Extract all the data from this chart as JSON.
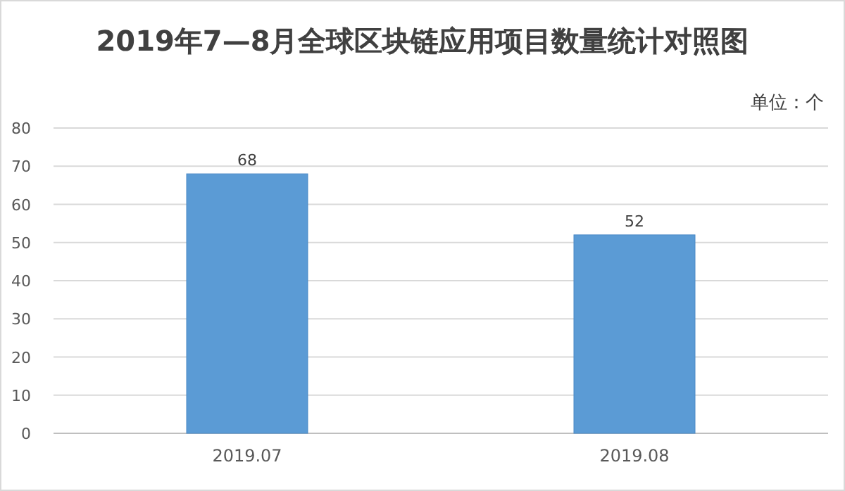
{
  "chart_data": {
    "type": "bar",
    "title": "2019年7—8月全球区块链应用项目数量统计对照图",
    "annotations": [
      "单位：个"
    ],
    "categories": [
      "2019.07",
      "2019.08"
    ],
    "values": [
      68,
      52
    ],
    "color": "#5b9bd5",
    "ylim": [
      0,
      80
    ],
    "yticks": [
      0,
      10,
      20,
      30,
      40,
      50,
      60,
      70,
      80
    ],
    "grid": "y",
    "data_labels": true
  }
}
